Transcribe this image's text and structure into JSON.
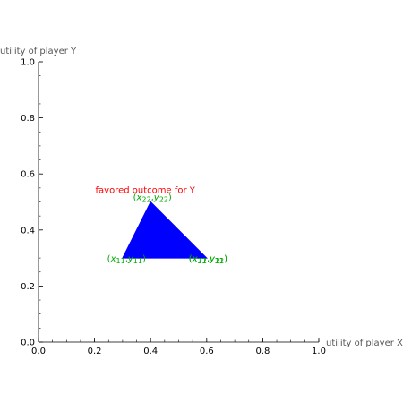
{
  "chart_data": {
    "type": "area",
    "title": "",
    "xlabel": "utility of player X",
    "ylabel": "utility of player Y",
    "xlim": [
      0,
      1
    ],
    "ylim": [
      0,
      1
    ],
    "grid": false,
    "x_ticks": [
      "0.0",
      "0.2",
      "0.4",
      "0.6",
      "0.8",
      "1.0"
    ],
    "y_ticks": [
      "0.0",
      "0.2",
      "0.4",
      "0.6",
      "0.8",
      "1.0"
    ],
    "region": {
      "fill": "#0000ff",
      "points": [
        {
          "x": 0.3,
          "y": 0.3
        },
        {
          "x": 0.4,
          "y": 0.5
        },
        {
          "x": 0.6,
          "y": 0.3
        }
      ]
    },
    "vertex_labels": [
      {
        "x": 0.3,
        "y": 0.3,
        "open": "(",
        "a": "x",
        "a_sub": "11",
        "sep": ",",
        "b": "y",
        "b_sub": "11",
        "close": ")",
        "anchor": "end"
      },
      {
        "x": 0.4,
        "y": 0.5,
        "open": "(",
        "a": "x",
        "a_sub": "22",
        "sep": ",",
        "b": "y",
        "b_sub": "22",
        "close": ")",
        "anchor": "middle"
      },
      {
        "x": 0.6,
        "y": 0.3,
        "open": "(",
        "a": "x",
        "a_sub": "21",
        "sep": ",",
        "b": "y",
        "b_sub": "21",
        "close": ")",
        "anchor": "start"
      },
      {
        "x": 0.6,
        "y": 0.3,
        "open": "(",
        "a": "x",
        "a_sub": "12",
        "sep": ",",
        "b": "y",
        "b_sub": "12",
        "close": ")",
        "anchor": "start"
      }
    ],
    "vertex_label_color": "#00aa00",
    "annotation": {
      "text": "favored outcome for Y",
      "x": 0.4,
      "y": 0.5,
      "color": "#ff0000"
    }
  }
}
